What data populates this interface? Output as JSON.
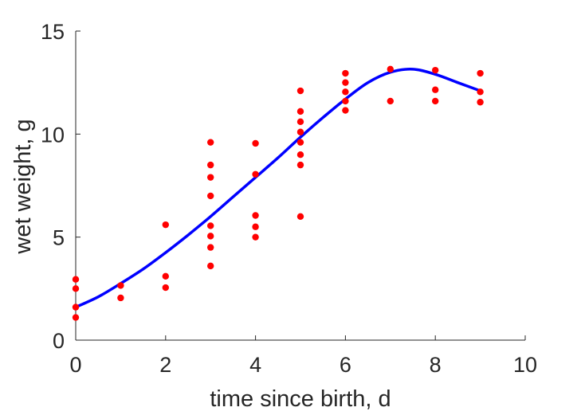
{
  "chart_data": {
    "type": "scatter",
    "title": "",
    "xlabel": "time since birth, d",
    "ylabel": "wet weight, g",
    "xlim": [
      0,
      10
    ],
    "ylim": [
      0,
      15
    ],
    "xticks": [
      0,
      2,
      4,
      6,
      8,
      10
    ],
    "yticks": [
      0,
      5,
      10,
      15
    ],
    "grid": false,
    "legend": "none",
    "colors": {
      "points": "#ff0000",
      "curve": "#0000ff",
      "axes": "#262626"
    },
    "series": [
      {
        "kind": "points",
        "x": [
          0,
          0,
          0,
          0,
          1,
          1,
          2,
          2,
          2,
          3,
          3,
          3,
          3,
          3,
          3,
          3,
          3,
          4,
          4,
          4,
          4,
          4,
          5,
          5,
          5,
          5,
          5,
          5,
          5,
          5,
          6,
          6,
          6,
          6,
          6,
          7,
          7,
          8,
          8,
          8,
          9,
          9,
          9
        ],
        "y": [
          1.1,
          1.6,
          2.5,
          2.95,
          2.05,
          2.65,
          2.55,
          3.1,
          5.6,
          3.6,
          4.5,
          5.05,
          5.55,
          7.0,
          7.9,
          8.5,
          9.6,
          5.0,
          5.5,
          6.05,
          8.05,
          9.55,
          6.0,
          8.5,
          9.0,
          9.6,
          10.1,
          10.6,
          11.1,
          12.1,
          11.15,
          11.6,
          12.05,
          12.5,
          12.95,
          11.6,
          13.15,
          11.6,
          12.15,
          13.1,
          11.55,
          12.05,
          12.95
        ]
      },
      {
        "kind": "line",
        "x": [
          0,
          0.5,
          1,
          1.5,
          2,
          2.5,
          3,
          3.5,
          4,
          4.5,
          5,
          5.5,
          6,
          6.5,
          7,
          7.5,
          8,
          8.5,
          9
        ],
        "y": [
          1.6,
          2.1,
          2.75,
          3.45,
          4.25,
          5.1,
          6.0,
          6.95,
          7.9,
          8.85,
          9.85,
          10.8,
          11.7,
          12.5,
          13.0,
          13.15,
          12.9,
          12.5,
          12.1
        ]
      }
    ]
  }
}
